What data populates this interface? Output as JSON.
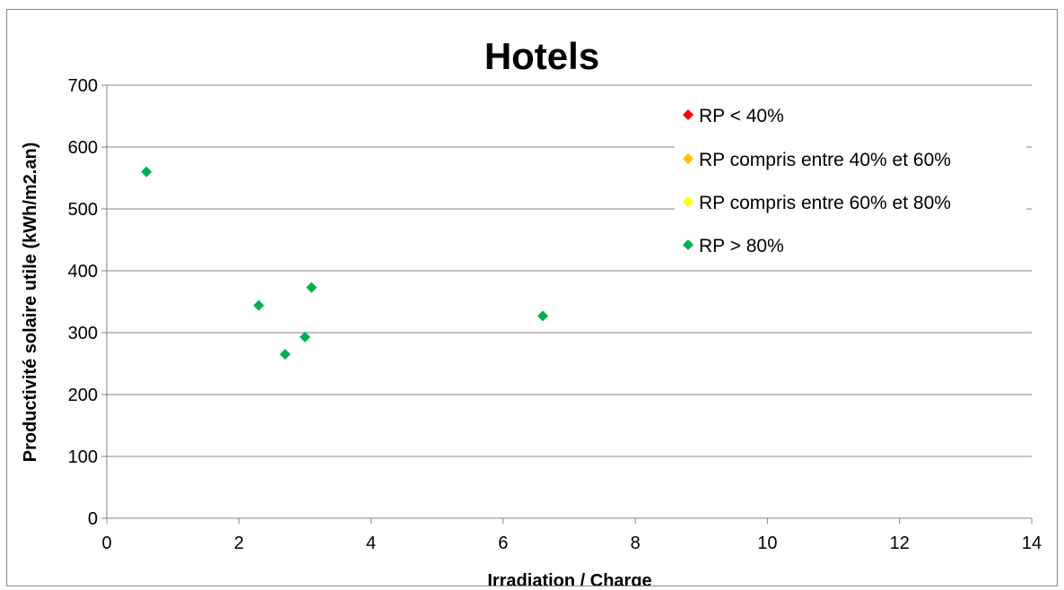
{
  "chart_data": {
    "type": "scatter",
    "title": "Hotels",
    "xlabel": "Irradiation / Charge",
    "ylabel": "Productivité solaire utile (kWh/m2.an)",
    "xlim": [
      0,
      14
    ],
    "ylim": [
      0,
      700
    ],
    "xticks": [
      0,
      2,
      4,
      6,
      8,
      10,
      12,
      14
    ],
    "yticks": [
      0,
      100,
      200,
      300,
      400,
      500,
      600,
      700
    ],
    "grid": "horizontal",
    "legend_position": "top-right",
    "series": [
      {
        "name": "RP < 40%",
        "color": "#ff0000",
        "marker": "diamond",
        "points": []
      },
      {
        "name": "RP compris entre 40% et 60%",
        "color": "#ffc000",
        "marker": "diamond",
        "points": []
      },
      {
        "name": "RP compris entre 60% et 80%",
        "color": "#ffff00",
        "marker": "diamond",
        "points": []
      },
      {
        "name": "RP > 80%",
        "color": "#00b050",
        "marker": "diamond",
        "points": [
          {
            "x": 0.6,
            "y": 560
          },
          {
            "x": 2.3,
            "y": 344
          },
          {
            "x": 2.7,
            "y": 265
          },
          {
            "x": 3.0,
            "y": 293
          },
          {
            "x": 3.1,
            "y": 373
          },
          {
            "x": 6.6,
            "y": 327
          }
        ]
      }
    ]
  }
}
